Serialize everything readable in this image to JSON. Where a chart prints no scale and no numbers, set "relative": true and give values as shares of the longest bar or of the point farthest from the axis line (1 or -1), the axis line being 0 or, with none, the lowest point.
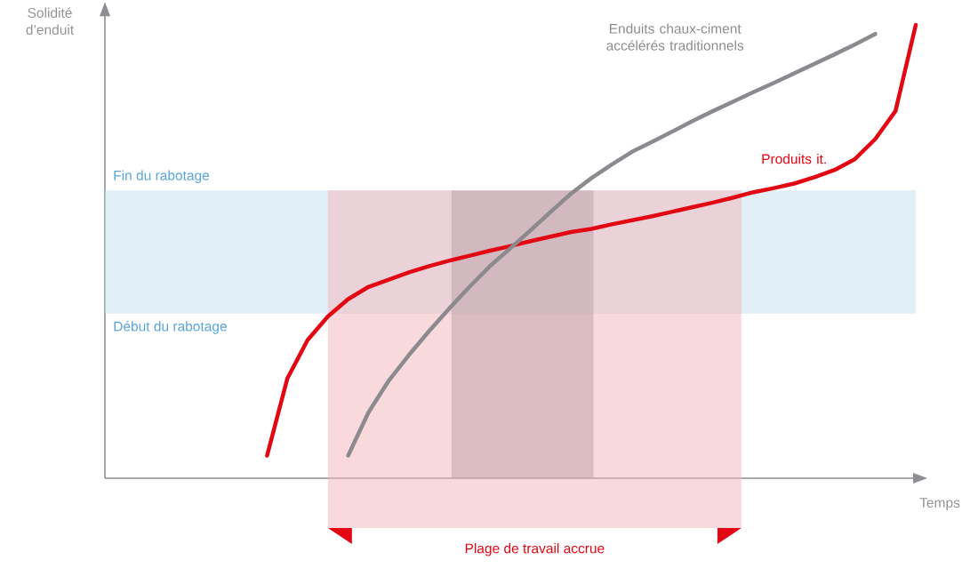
{
  "chart_data": {
    "type": "line",
    "relative": true,
    "xlabel": "Temps",
    "ylabel": "Solidité d’enduit",
    "line_style": "solid",
    "marker": "none",
    "categories": [
      null,
      null,
      null,
      null,
      null,
      null,
      null,
      null,
      null,
      null,
      null,
      null,
      null,
      null,
      null,
      null,
      null,
      null,
      null,
      null,
      null,
      null,
      null,
      null,
      null,
      null,
      null,
      null,
      null,
      null,
      null,
      null,
      null,
      null,
      null,
      null,
      null,
      null,
      null,
      null,
      null
    ],
    "series": [
      {
        "name": "Produits it.",
        "color": "#e30613",
        "values": [
          null,
          null,
          null,
          null,
          null,
          null,
          null,
          null,
          0.05,
          0.22,
          0.305,
          0.357,
          0.395,
          0.422,
          0.438,
          0.454,
          0.468,
          0.48,
          0.491,
          0.502,
          0.512,
          0.523,
          0.533,
          0.543,
          0.55,
          0.56,
          0.569,
          0.578,
          0.588,
          0.598,
          0.608,
          0.619,
          0.631,
          0.64,
          0.65,
          0.664,
          0.68,
          0.704,
          0.748,
          0.81,
          1.0
        ]
      },
      {
        "name": "Enduits chaux-ciment accélérés traditionnels",
        "color": "#8c8a8e",
        "values": [
          null,
          null,
          null,
          null,
          null,
          null,
          null,
          null,
          null,
          null,
          null,
          null,
          0.05,
          0.145,
          0.215,
          0.272,
          0.325,
          0.375,
          0.423,
          0.468,
          0.507,
          0.547,
          0.588,
          0.628,
          0.662,
          0.692,
          0.72,
          0.742,
          0.765,
          0.788,
          0.81,
          0.831,
          0.852,
          0.872,
          0.893,
          0.914,
          0.935,
          0.957,
          0.98,
          null,
          null
        ]
      }
    ],
    "bands": [
      {
        "axis": "y",
        "from": 0.363,
        "to": 0.635,
        "color": "#c8e1f1"
      }
    ],
    "annotations": [
      "Fin du rabotage",
      "Début du rabotage",
      "Plage de travail accrue"
    ]
  }
}
